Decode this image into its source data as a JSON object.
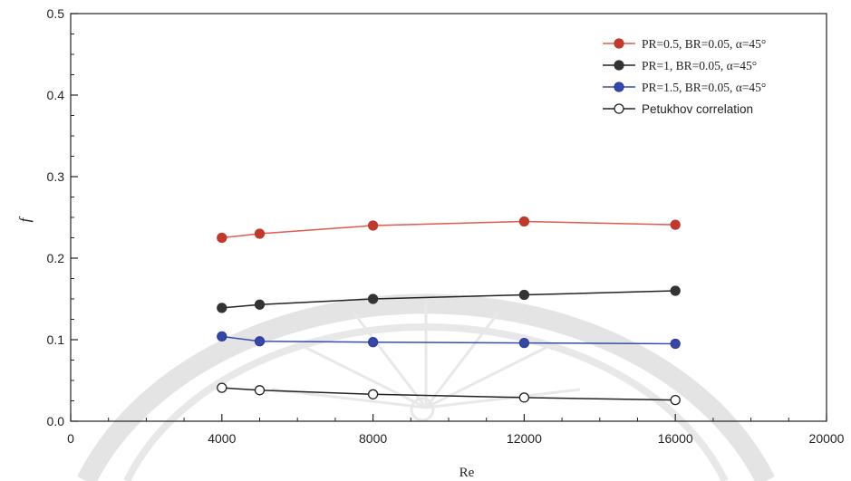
{
  "chart_data": {
    "type": "line",
    "xlabel": "Re",
    "ylabel": "f",
    "xlim": [
      0,
      20000
    ],
    "ylim": [
      0,
      0.5
    ],
    "xticks": [
      0,
      4000,
      8000,
      12000,
      16000,
      20000
    ],
    "yticks": [
      0.0,
      0.1,
      0.2,
      0.3,
      0.4,
      0.5
    ],
    "xtick_labels": [
      "0",
      "4000",
      "8000",
      "12000",
      "16000",
      "20000"
    ],
    "ytick_labels": [
      "0.0",
      "0.1",
      "0.2",
      "0.3",
      "0.4",
      "0.5"
    ],
    "grid": false,
    "legend_position": "top-right",
    "x": [
      4000,
      5000,
      8000,
      12000,
      16000
    ],
    "series": [
      {
        "name": "PR=0.5, BR=0.05, α=45°",
        "values": [
          0.225,
          0.23,
          0.24,
          0.245,
          0.241
        ],
        "color": "#c0392b",
        "marker_fill": "#c0392b",
        "line_color": "#e05a4f"
      },
      {
        "name": "PR=1, BR=0.05, α=45°",
        "values": [
          0.139,
          0.143,
          0.15,
          0.155,
          0.16
        ],
        "color": "#333333",
        "marker_fill": "#333333",
        "line_color": "#222222"
      },
      {
        "name": "PR=1.5, BR=0.05, α=45°",
        "values": [
          0.104,
          0.098,
          0.097,
          0.096,
          0.095
        ],
        "color": "#2f3e9e",
        "marker_fill": "#3547a8",
        "line_color": "#3b4cb0"
      },
      {
        "name": "Petukhov correlation",
        "values": [
          0.041,
          0.038,
          0.033,
          0.029,
          0.026
        ],
        "color": "#222222",
        "marker_fill": "#ffffff",
        "line_color": "#222222"
      }
    ]
  }
}
